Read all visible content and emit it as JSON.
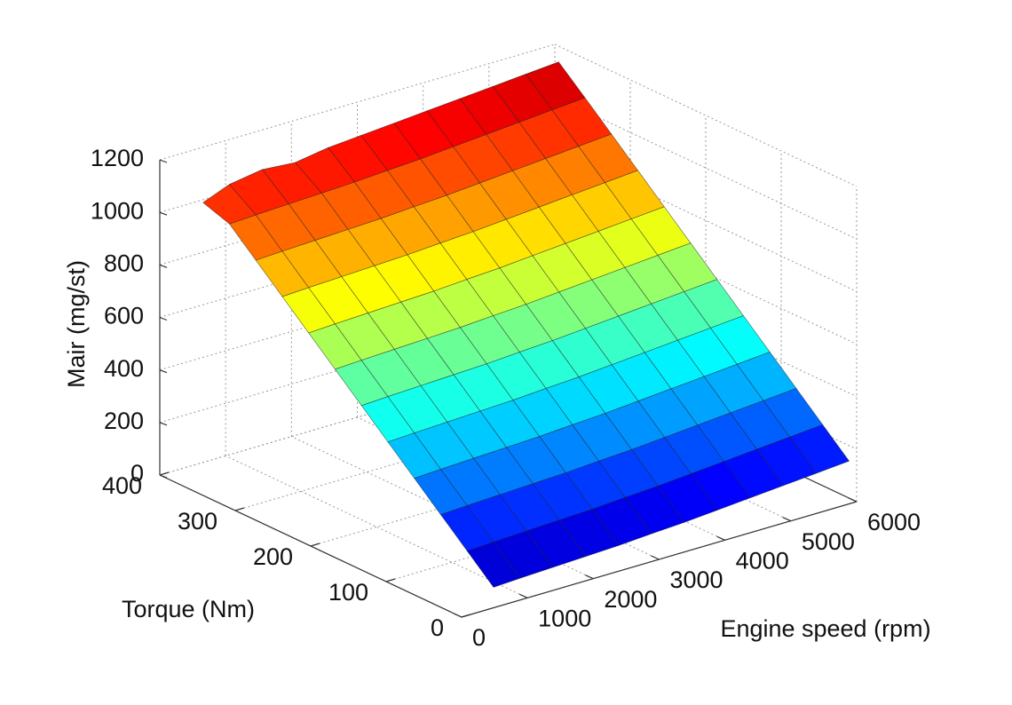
{
  "chart_data": {
    "type": "surface",
    "colormap": "jet",
    "xlabel": "Engine speed (rpm)",
    "ylabel": "Torque  (Nm)",
    "zlabel": "Mair  (mg/st)",
    "x": [
      600,
      1000,
      1500,
      2000,
      2500,
      3000,
      3500,
      4000,
      4500,
      5000,
      5500,
      6000
    ],
    "y": [
      10,
      45,
      80,
      115,
      150,
      185,
      220,
      255,
      290,
      325,
      360,
      395
    ],
    "z": [
      [
        56,
        61,
        66,
        71,
        76,
        84,
        91,
        101,
        111,
        121,
        131,
        141
      ],
      [
        147,
        152,
        157,
        162,
        167,
        175,
        182,
        192,
        202,
        212,
        222,
        232
      ],
      [
        238,
        243,
        248,
        253,
        258,
        266,
        273,
        283,
        293,
        303,
        313,
        323
      ],
      [
        329,
        334,
        339,
        344,
        349,
        357,
        364,
        374,
        384,
        394,
        404,
        414
      ],
      [
        420,
        425,
        430,
        435,
        440,
        448,
        455,
        465,
        475,
        485,
        495,
        505
      ],
      [
        511,
        516,
        521,
        526,
        531,
        539,
        546,
        556,
        566,
        576,
        586,
        596
      ],
      [
        602,
        607,
        612,
        617,
        622,
        630,
        637,
        647,
        657,
        667,
        677,
        687
      ],
      [
        693,
        698,
        703,
        708,
        713,
        721,
        728,
        738,
        748,
        758,
        768,
        778
      ],
      [
        784,
        789,
        794,
        799,
        804,
        812,
        819,
        829,
        839,
        849,
        859,
        869
      ],
      [
        875,
        880,
        885,
        890,
        895,
        903,
        910,
        920,
        930,
        940,
        950,
        960
      ],
      [
        966,
        971,
        976,
        981,
        986,
        994,
        1001,
        1011,
        1021,
        1031,
        1041,
        1051
      ],
      [
        1000,
        1040,
        1060,
        1050,
        1070,
        1080,
        1090,
        1100,
        1110,
        1120,
        1130,
        1140
      ]
    ],
    "xlim": [
      0,
      6000
    ],
    "xticks": [
      0,
      1000,
      2000,
      3000,
      4000,
      5000,
      6000
    ],
    "ylim": [
      0,
      400
    ],
    "yticks": [
      0,
      100,
      200,
      300,
      400
    ],
    "zlim": [
      0,
      1200
    ],
    "zticks": [
      0,
      200,
      400,
      600,
      800,
      1000,
      1200
    ],
    "grid": true
  }
}
